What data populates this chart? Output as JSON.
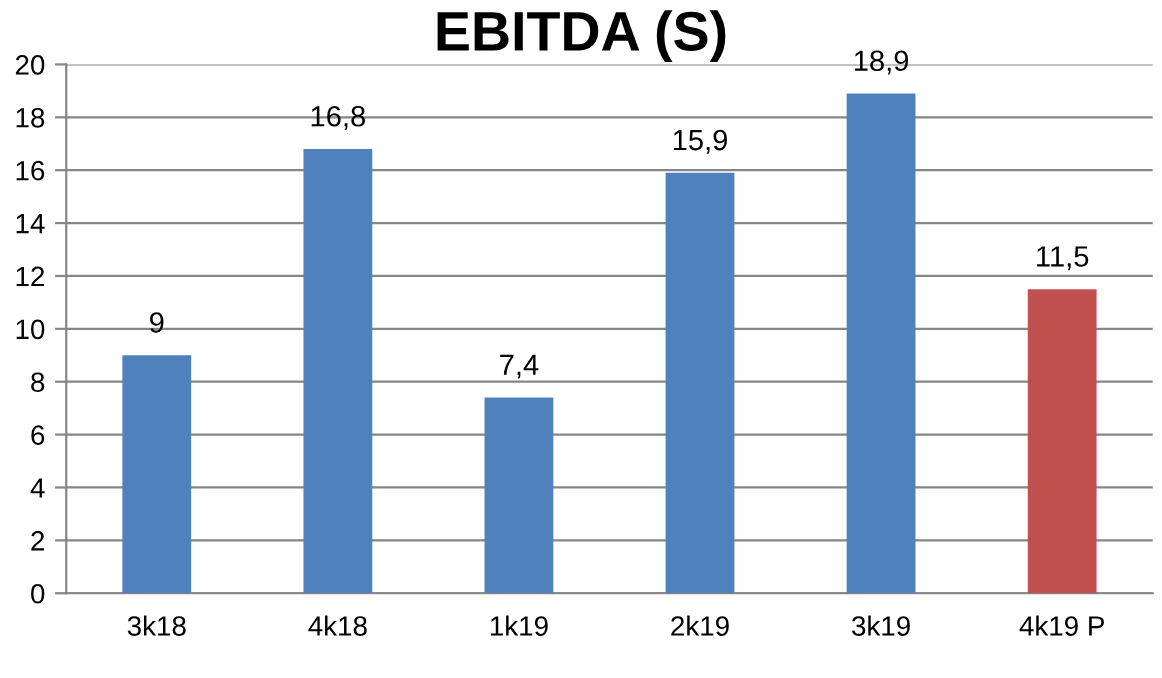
{
  "chart_data": {
    "type": "bar",
    "title": "EBITDA (S)",
    "categories": [
      "3k18",
      "4k18",
      "1k19",
      "2k19",
      "3k19",
      "4k19 P"
    ],
    "values": [
      9,
      16.8,
      7.4,
      15.9,
      18.9,
      11.5
    ],
    "colors": [
      "#4f81bd",
      "#4f81bd",
      "#4f81bd",
      "#4f81bd",
      "#4f81bd",
      "#c0504d"
    ],
    "value_labels": [
      "9",
      "16,8",
      "7,4",
      "15,9",
      "18,9",
      "11,5"
    ],
    "ylim": [
      0,
      20
    ],
    "yticks": [
      0,
      2,
      4,
      6,
      8,
      10,
      12,
      14,
      16,
      18,
      20
    ],
    "grid": "y",
    "legend": false
  }
}
